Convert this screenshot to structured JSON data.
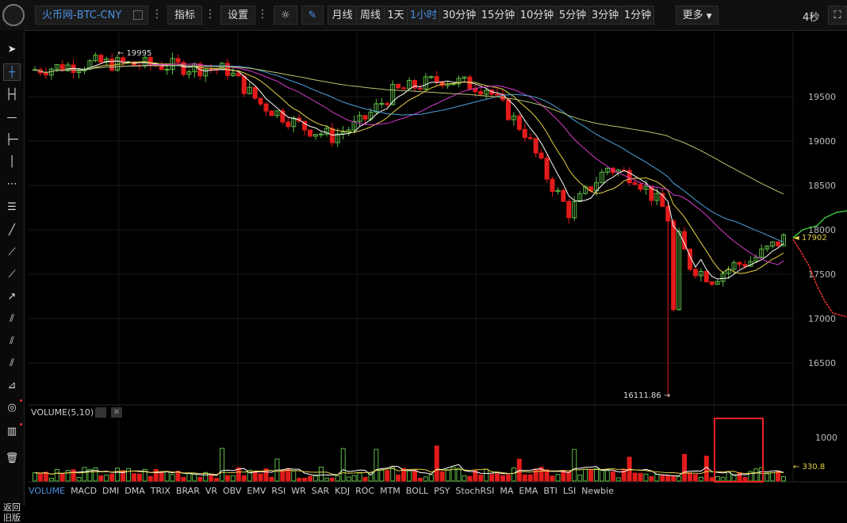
{
  "header": {
    "symbol": "火币网-BTC-CNY",
    "indicators_label": "指标",
    "settings_label": "设置",
    "more_label": "更多",
    "refresh_label": "4秒",
    "periods": [
      "月线",
      "周线",
      "1天",
      "1小时",
      "30分钟",
      "15分钟",
      "10分钟",
      "5分钟",
      "3分钟",
      "1分钟"
    ],
    "active_period": "1小时"
  },
  "sidebar": {
    "back_label": "返回旧版"
  },
  "price_axis": {
    "ticks": [
      "19500",
      "19000",
      "18500",
      "18000",
      "17500",
      "17000",
      "16500"
    ]
  },
  "annotations": {
    "high": "19995",
    "low": "16111.86",
    "last_price": "17902"
  },
  "volume_panel": {
    "label": "VOLUME(5,10)",
    "tick": "1000",
    "current": "330.8"
  },
  "indicators": [
    "VOLUME",
    "MACD",
    "DMI",
    "DMA",
    "TRIX",
    "BRAR",
    "VR",
    "OBV",
    "EMV",
    "RSI",
    "WR",
    "SAR",
    "KDJ",
    "ROC",
    "MTM",
    "BOLL",
    "PSY",
    "StochRSI",
    "MA",
    "EMA",
    "BTI",
    "LSI",
    "Newbie"
  ],
  "active_indicator": "VOLUME",
  "colors": {
    "up": "#5dbb46",
    "down": "#e21b1b",
    "ma5": "#ffffff",
    "ma10": "#e6d246",
    "ma20": "#d93ad0",
    "ma30": "#4da3e0",
    "ma60": "#b7c46e",
    "accent": "#4a90e2"
  }
}
